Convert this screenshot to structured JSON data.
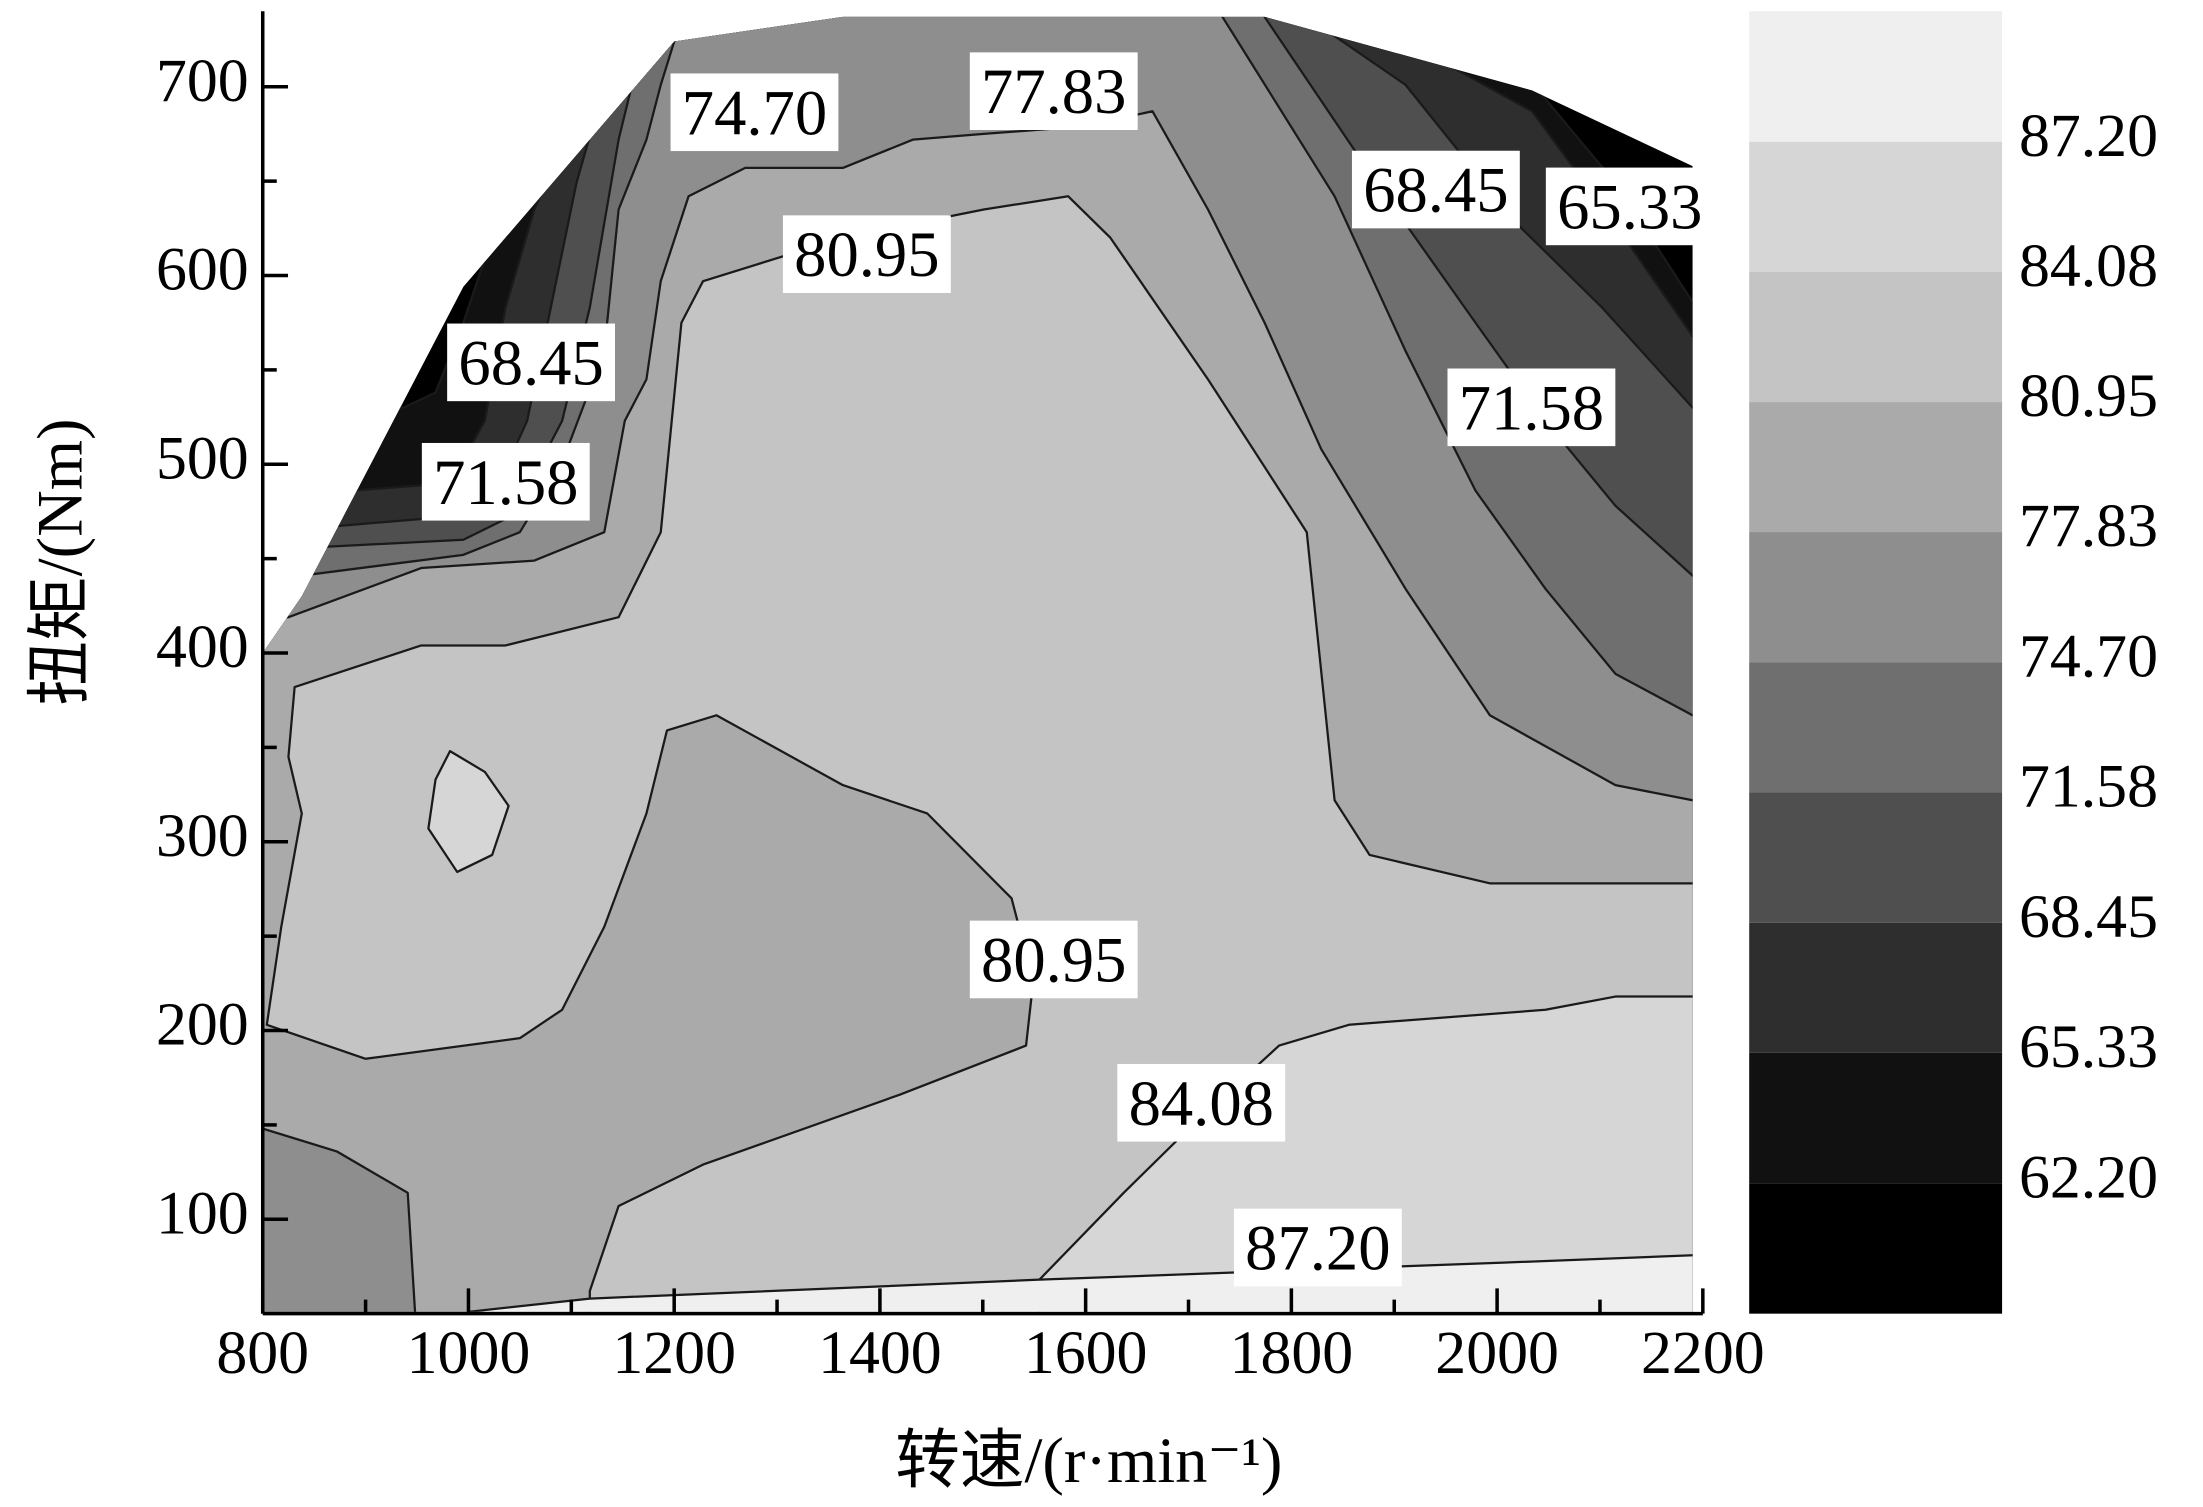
{
  "chart_data": {
    "type": "contour",
    "x_label": "转速/(r·min⁻¹)",
    "y_label": "扭矩/(Nm)",
    "xlim": [
      800,
      2200
    ],
    "ylim": [
      50,
      740
    ],
    "xticks": [
      800,
      1000,
      1200,
      1400,
      1600,
      1800,
      2000,
      2200
    ],
    "xminorticks": [
      900,
      1100,
      1300,
      1500,
      1700,
      1900,
      2100
    ],
    "yticks": [
      100,
      200,
      300,
      400,
      500,
      600,
      700
    ],
    "yminorticks": [
      150,
      250,
      350,
      450,
      550,
      650
    ],
    "levels": [
      {
        "value": 62.2,
        "label": "62.20"
      },
      {
        "value": 65.33,
        "label": "65.33"
      },
      {
        "value": 68.45,
        "label": "68.45"
      },
      {
        "value": 71.58,
        "label": "71.58"
      },
      {
        "value": 74.7,
        "label": "74.70"
      },
      {
        "value": 77.83,
        "label": "77.83"
      },
      {
        "value": 80.95,
        "label": "80.95"
      },
      {
        "value": 84.08,
        "label": "84.08"
      },
      {
        "value": 87.2,
        "label": "87.20"
      }
    ],
    "clim": [
      59.07,
      90.33
    ],
    "colors": [
      "#000000",
      "#111111",
      "#2e2e2e",
      "#4f4f4f",
      "#6f6f6f",
      "#8e8e8e",
      "#aaaaaa",
      "#c4c4c4",
      "#d6d6d6",
      "#efefef"
    ],
    "line_color": "#1a1a1a",
    "domain": {
      "x": [
        800,
        800,
        838,
        995,
        1200,
        1364,
        1774,
        2034,
        2190,
        2190
      ],
      "y": [
        51,
        400,
        430,
        594,
        724,
        737,
        737,
        698,
        658,
        51
      ]
    },
    "regions": [
      {
        "level": 62.2,
        "x": [
          700,
          700,
          937,
          968,
          995,
          1016,
          1036,
          1036,
          2040,
          2040,
          2115,
          2190,
          2300,
          2300
        ],
        "y": [
          0,
          530,
          530,
          538,
          575,
          609,
          620,
          800,
          800,
          698,
          649,
          586,
          586,
          0
        ]
      },
      {
        "level": 65.33,
        "x": [
          700,
          700,
          886,
          982,
          1016,
          1036,
          1064,
          1118,
          1159,
          1159,
          1911,
          1911,
          2034,
          2115,
          2190,
          2300,
          2300
        ],
        "y": [
          0,
          486,
          486,
          490,
          523,
          583,
          635,
          701,
          724,
          800,
          800,
          724,
          687,
          627,
          568,
          568,
          0
        ]
      },
      {
        "level": 68.45,
        "x": [
          700,
          700,
          866,
          954,
          1023,
          1057,
          1077,
          1105,
          1132,
          1173,
          1173,
          1815,
          1815,
          1911,
          2020,
          2102,
          2190,
          2300,
          2300
        ],
        "y": [
          0,
          467,
          467,
          471,
          482,
          523,
          575,
          649,
          701,
          724,
          800,
          800,
          737,
          701,
          627,
          583,
          530,
          530,
          0
        ]
      },
      {
        "level": 71.58,
        "x": [
          700,
          700,
          852,
          995,
          1036,
          1070,
          1091,
          1118,
          1146,
          1159,
          1187,
          1187,
          1774,
          1774,
          1883,
          1979,
          2047,
          2115,
          2190,
          2300,
          2300
        ],
        "y": [
          0,
          456,
          456,
          460,
          471,
          501,
          523,
          583,
          672,
          701,
          724,
          800,
          800,
          737,
          649,
          575,
          523,
          478,
          441,
          441,
          0
        ]
      },
      {
        "level": 74.7,
        "x": [
          700,
          700,
          838,
          995,
          1050,
          1091,
          1132,
          1146,
          1173,
          1187,
          1200,
          1200,
          1733,
          1733,
          1842,
          1911,
          1979,
          2047,
          2115,
          2190,
          2300,
          2300
        ],
        "y": [
          0,
          441,
          441,
          452,
          464,
          501,
          560,
          635,
          672,
          701,
          724,
          800,
          800,
          737,
          642,
          560,
          486,
          434,
          389,
          367,
          367,
          0
        ]
      },
      {
        "level": 77.83,
        "x": [
          700,
          825,
          954,
          1064,
          1132,
          1152,
          1173,
          1187,
          1214,
          1269,
          1364,
          1432,
          1501,
          1596,
          1665,
          1719,
          1774,
          1829,
          1911,
          1993,
          2115,
          2190,
          2300,
          2300,
          948,
          948,
          941,
          872,
          800,
          700
        ],
        "y": [
          419,
          419,
          445,
          449,
          464,
          523,
          545,
          597,
          642,
          657,
          657,
          672,
          675,
          679,
          687,
          635,
          575,
          508,
          434,
          367,
          330,
          322,
          322,
          0,
          0,
          51,
          114,
          136,
          148,
          148
        ]
      },
      {
        "level": 80.95,
        "x": [
          831,
          954,
          1036,
          1146,
          1187,
          1207,
          1228,
          1364,
          1501,
          1583,
          1624,
          1719,
          1815,
          1842,
          1876,
          1993,
          2190,
          2300,
          2300,
          1118,
          1118,
          1118,
          1146,
          1228,
          1419,
          1542,
          1549,
          1528,
          1446,
          1364,
          1241,
          1193,
          1173,
          1132,
          1091,
          1050,
          900,
          804,
          818,
          838,
          825
        ],
        "y": [
          382,
          404,
          404,
          419,
          464,
          575,
          597,
          620,
          635,
          642,
          620,
          545,
          464,
          322,
          293,
          278,
          278,
          278,
          0,
          0,
          51,
          62,
          107,
          129,
          166,
          192,
          226,
          270,
          315,
          330,
          367,
          359,
          315,
          255,
          211,
          196,
          185,
          203,
          255,
          315,
          345
        ]
      },
      {
        "level": 84.08,
        "x": [
          1555,
          1555,
          1637,
          1706,
          1788,
          1856,
          2047,
          2115,
          2190,
          2300,
          2300
        ],
        "y": [
          0,
          68,
          114,
          151,
          192,
          203,
          211,
          218,
          218,
          218,
          0
        ]
      },
      {
        "level": 84.08,
        "x": [
          982,
          1016,
          1039,
          1023,
          989,
          961,
          968
        ],
        "y": [
          348,
          337,
          319,
          293,
          284,
          307,
          333
        ]
      },
      {
        "level": 87.2,
        "x": [
          1000,
          1000,
          1118,
          1555,
          2006,
          2190,
          2300,
          2300
        ],
        "y": [
          0,
          51,
          58,
          68,
          77,
          81,
          81,
          0
        ]
      }
    ],
    "contour_labels": [
      "74.70",
      "77.83",
      "80.95",
      "68.45",
      "71.58",
      "68.45",
      "65.33",
      "71.58",
      "80.95",
      "84.08",
      "87.20"
    ]
  }
}
